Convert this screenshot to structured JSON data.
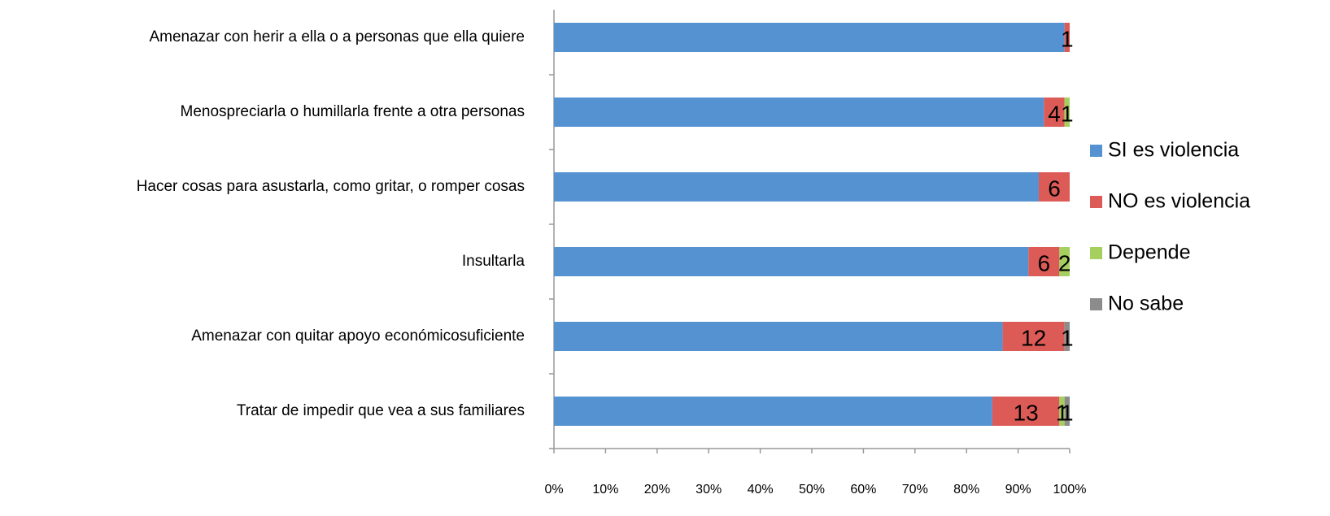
{
  "chart_data": {
    "type": "stacked_barh",
    "categories": [
      "Amenazar con herir a ella o a personas que ella quiere",
      "Menospreciarla o humillarla frente a otra personas",
      "Hacer cosas para asustarla, como gritar, o romper cosas",
      "Insultarla",
      "Amenazar con quitar apoyo económicosuficiente",
      "Tratar de impedir que vea a sus familiares"
    ],
    "series": [
      {
        "name": "SI es violencia",
        "color": "#5592d1",
        "values": [
          99,
          95,
          94,
          92,
          87,
          85
        ],
        "data_labels": false
      },
      {
        "name": "NO es violencia",
        "color": "#dd5b57",
        "values": [
          1,
          4,
          6,
          6,
          12,
          13
        ],
        "data_labels": true
      },
      {
        "name": "Depende",
        "color": "#a5cf5f",
        "values": [
          null,
          1,
          null,
          2,
          null,
          1
        ],
        "data_labels": true
      },
      {
        "name": "No sabe",
        "color": "#8c8c8c",
        "values": [
          null,
          null,
          null,
          null,
          1,
          1
        ],
        "data_labels": true
      }
    ],
    "xlim": [
      0,
      100
    ],
    "xticks": [
      {
        "value": 0,
        "label": "0%"
      },
      {
        "value": 10,
        "label": "10%"
      },
      {
        "value": 20,
        "label": "20%"
      },
      {
        "value": 30,
        "label": "30%"
      },
      {
        "value": 40,
        "label": "40%"
      },
      {
        "value": 50,
        "label": "50%"
      },
      {
        "value": 60,
        "label": "60%"
      },
      {
        "value": 70,
        "label": "70%"
      },
      {
        "value": 80,
        "label": "80%"
      },
      {
        "value": 90,
        "label": "90%"
      },
      {
        "value": 100,
        "label": "100%"
      }
    ],
    "legend": "right"
  }
}
